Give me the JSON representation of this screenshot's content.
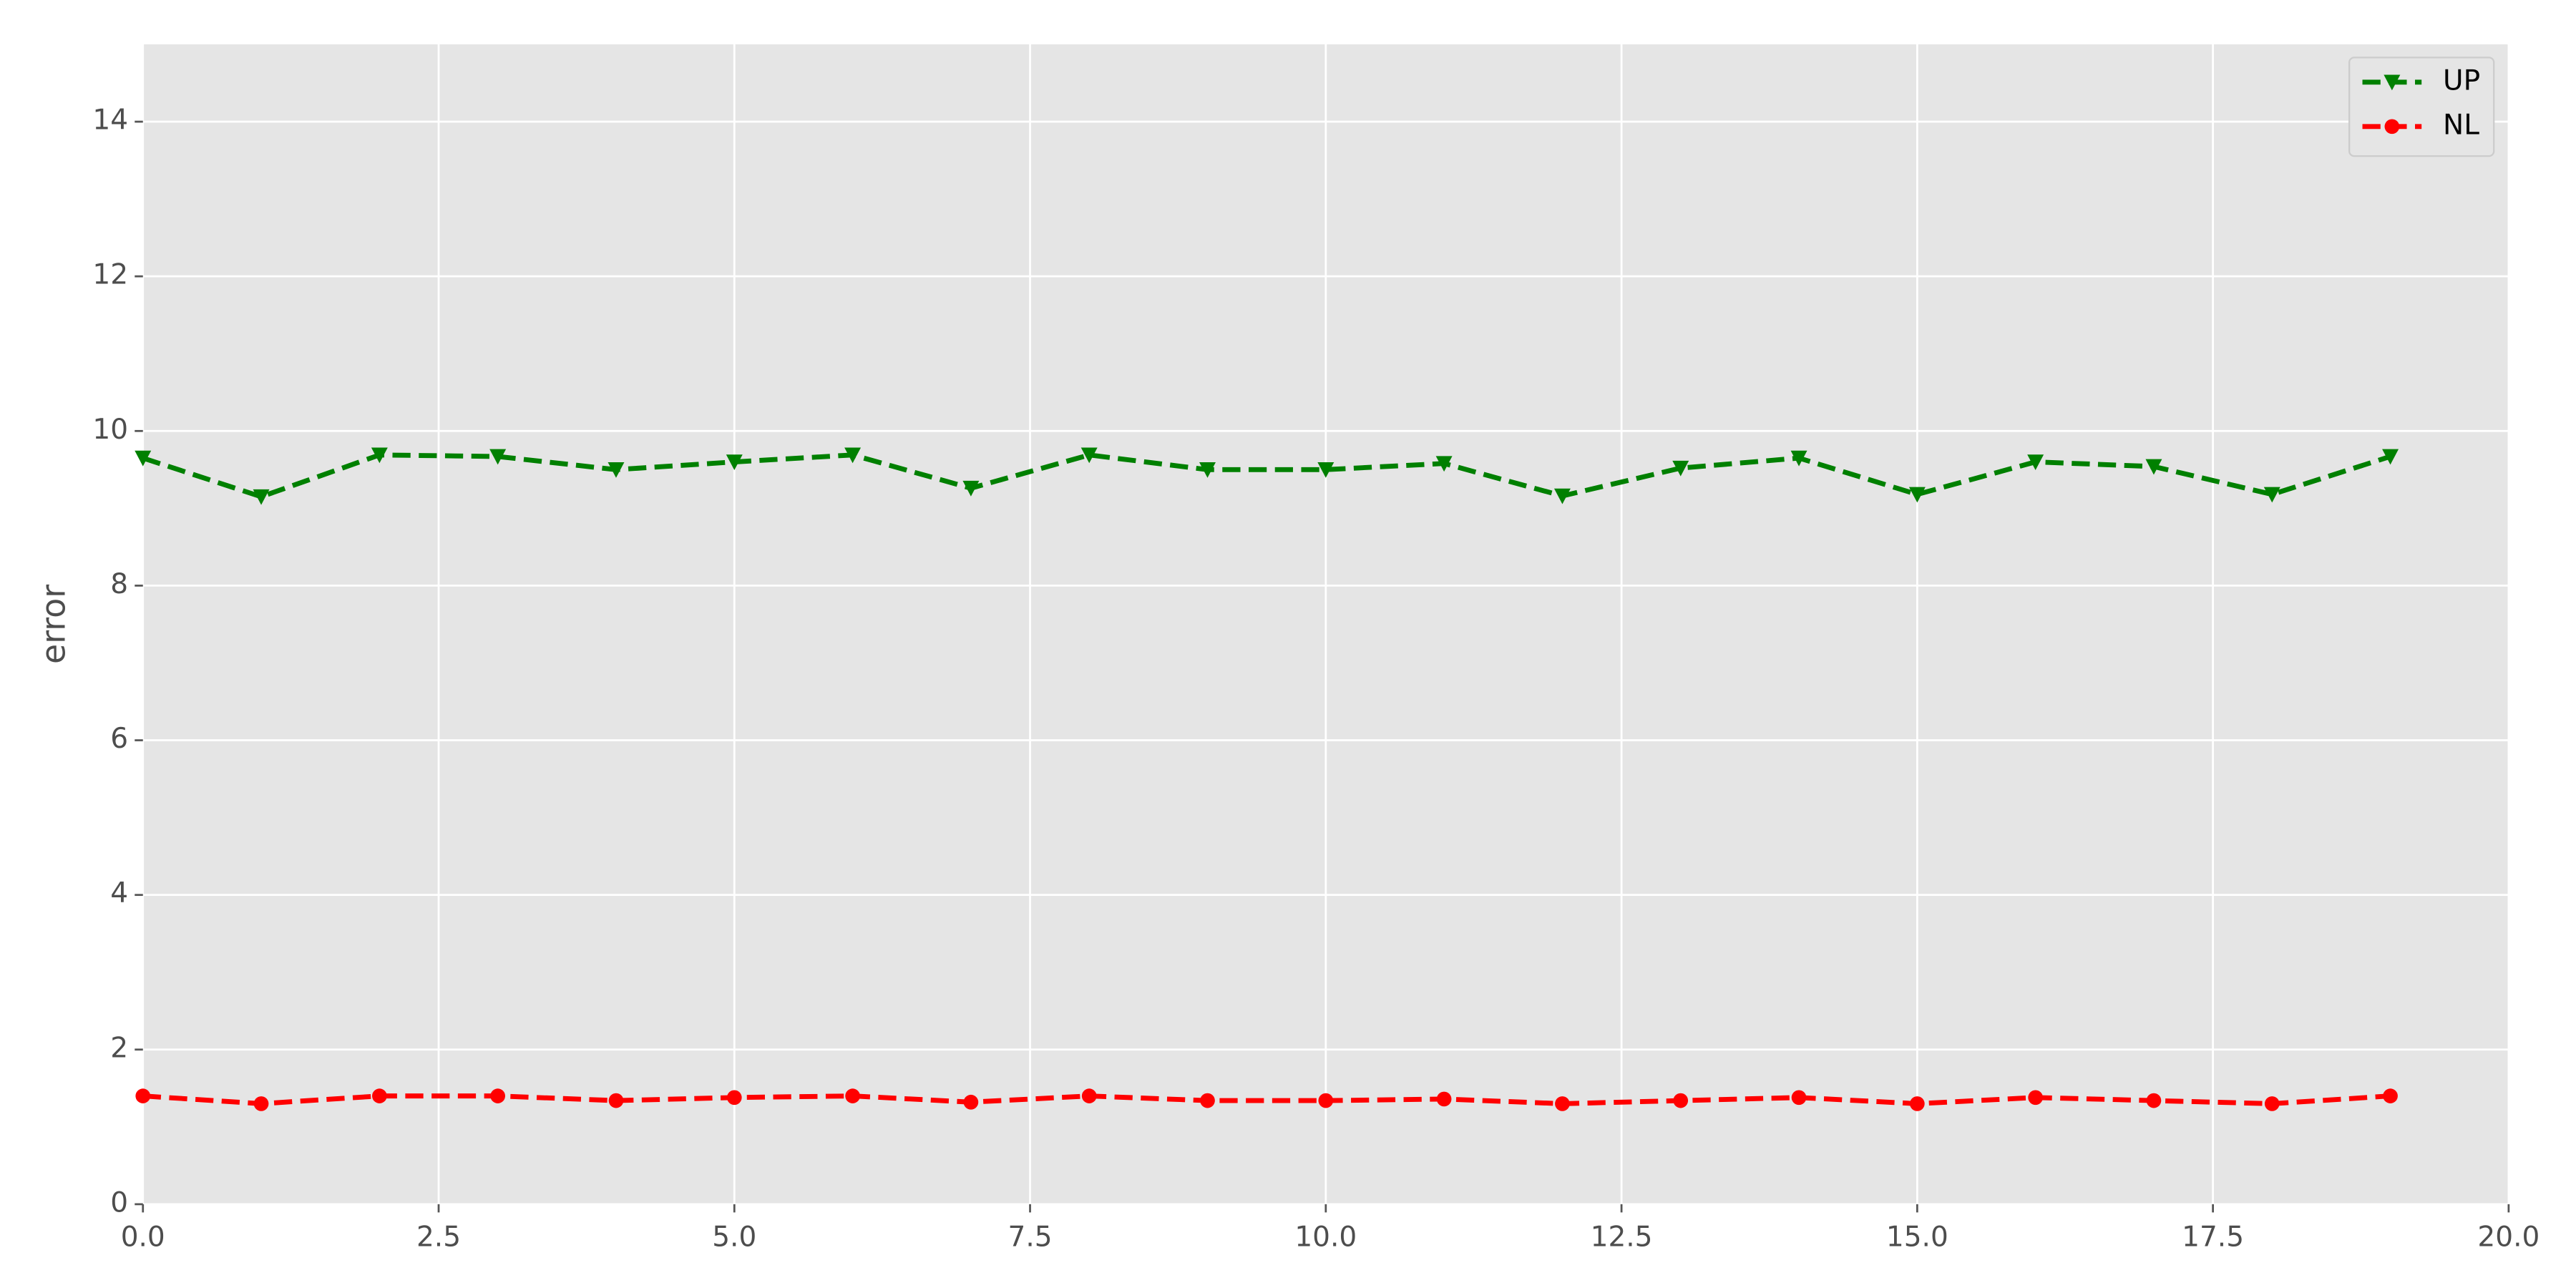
{
  "chart_data": {
    "type": "line",
    "ylabel": "error",
    "x": [
      0,
      1,
      2,
      3,
      4,
      5,
      6,
      7,
      8,
      9,
      10,
      11,
      12,
      13,
      14,
      15,
      16,
      17,
      18,
      19
    ],
    "series": [
      {
        "name": "UP",
        "color": "#008000",
        "marker": "triangle-down",
        "values": [
          9.65,
          9.15,
          9.69,
          9.67,
          9.5,
          9.6,
          9.69,
          9.26,
          9.69,
          9.5,
          9.5,
          9.58,
          9.16,
          9.52,
          9.65,
          9.18,
          9.6,
          9.54,
          9.18,
          9.67
        ]
      },
      {
        "name": "NL",
        "color": "#ff0000",
        "marker": "circle",
        "values": [
          1.4,
          1.3,
          1.4,
          1.4,
          1.34,
          1.38,
          1.4,
          1.32,
          1.4,
          1.34,
          1.34,
          1.36,
          1.3,
          1.34,
          1.38,
          1.3,
          1.38,
          1.34,
          1.3,
          1.4
        ]
      }
    ],
    "xlim": [
      0,
      20
    ],
    "ylim": [
      0,
      15
    ],
    "xticks": [
      {
        "value": 0,
        "label": "0.0"
      },
      2.5,
      {
        "value": 5,
        "label": "5.0"
      },
      7.5,
      {
        "value": 10,
        "label": "10.0"
      },
      12.5,
      {
        "value": 15,
        "label": "15.0"
      },
      17.5,
      {
        "value": 20,
        "label": "20.0"
      }
    ],
    "yticks": [
      0,
      2,
      4,
      6,
      8,
      10,
      12,
      14
    ],
    "grid": true,
    "legend": "upper right"
  }
}
